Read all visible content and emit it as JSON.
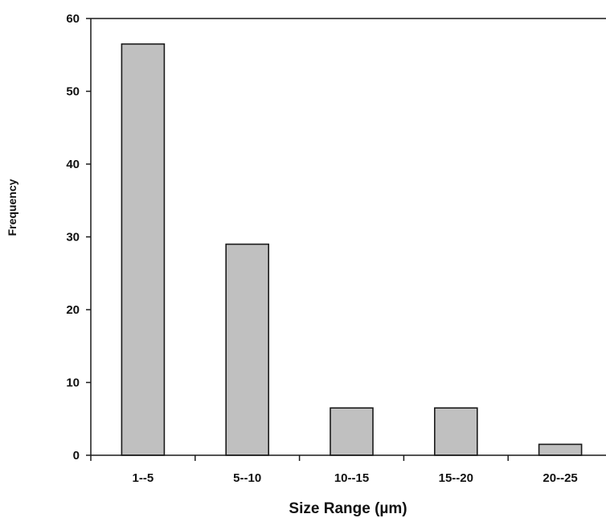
{
  "chart_data": {
    "type": "bar",
    "title": "",
    "xlabel": "Size Range (µm)",
    "ylabel": "Frequency",
    "categories": [
      "1--5",
      "5--10",
      "10--15",
      "15--20",
      "20--25"
    ],
    "values": [
      56.5,
      29,
      6.5,
      6.5,
      1.5
    ],
    "ylim": [
      0,
      60
    ],
    "yticks": [
      "0",
      "10",
      "20",
      "30",
      "40",
      "50",
      "60"
    ],
    "grid": false,
    "legend": "none",
    "colors": {
      "bar_fill": "#c0c0c0",
      "bar_stroke": "#1a1a1a",
      "axis": "#1a1a1a",
      "text": "#111111"
    }
  }
}
